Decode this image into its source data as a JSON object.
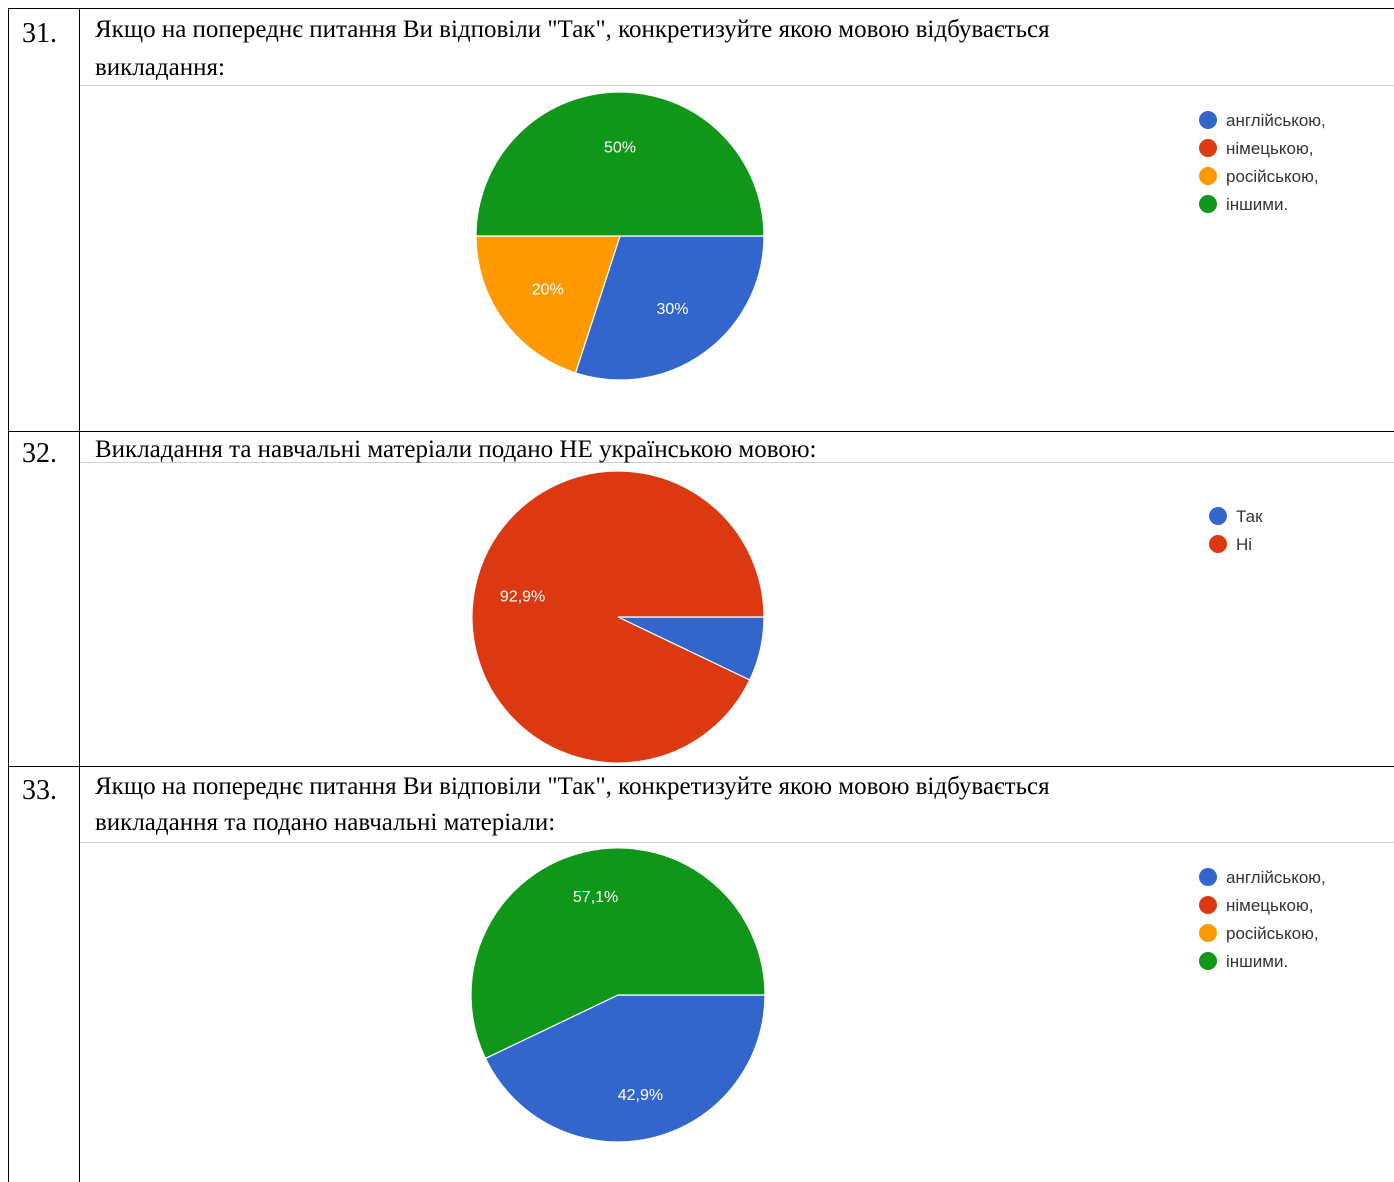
{
  "rows": [
    {
      "number": "31.",
      "question_line1": "Якщо на попереднє питання Ви відповіли \"Так\", конкретизуйте якою мовою відбувається",
      "question_line2": "викладання:"
    },
    {
      "number": "32.",
      "question_line1": "Викладання та навчальні матеріали подано НЕ українською мовою:",
      "question_line2": ""
    },
    {
      "number": "33.",
      "question_line1": "Якщо на попереднє питання Ви відповіли \"Так\", конкретизуйте якою мовою відбувається",
      "question_line2": "викладання та подано навчальні матеріали:"
    }
  ],
  "chart_data": [
    {
      "type": "pie",
      "slices": [
        {
          "label": "англійською,",
          "value": 30,
          "value_label": "30%",
          "color": "#3366CC"
        },
        {
          "label": "німецькою,",
          "value": 0,
          "value_label": "",
          "color": "#DC3912"
        },
        {
          "label": "російською,",
          "value": 20,
          "value_label": "20%",
          "color": "#FF9900"
        },
        {
          "label": "іншими.",
          "value": 50,
          "value_label": "50%",
          "color": "#109618"
        }
      ],
      "legend": "right"
    },
    {
      "type": "pie",
      "slices": [
        {
          "label": "Так",
          "value": 7.1,
          "value_label": "",
          "color": "#3366CC"
        },
        {
          "label": "Ні",
          "value": 92.9,
          "value_label": "92,9%",
          "color": "#DC3912"
        }
      ],
      "legend": "right"
    },
    {
      "type": "pie",
      "slices": [
        {
          "label": "англійською,",
          "value": 42.9,
          "value_label": "42,9%",
          "color": "#3366CC"
        },
        {
          "label": "німецькою,",
          "value": 0,
          "value_label": "",
          "color": "#DC3912"
        },
        {
          "label": "російською,",
          "value": 0,
          "value_label": "",
          "color": "#FF9900"
        },
        {
          "label": "іншими.",
          "value": 57.1,
          "value_label": "57,1%",
          "color": "#109618"
        }
      ],
      "legend": "right"
    }
  ]
}
